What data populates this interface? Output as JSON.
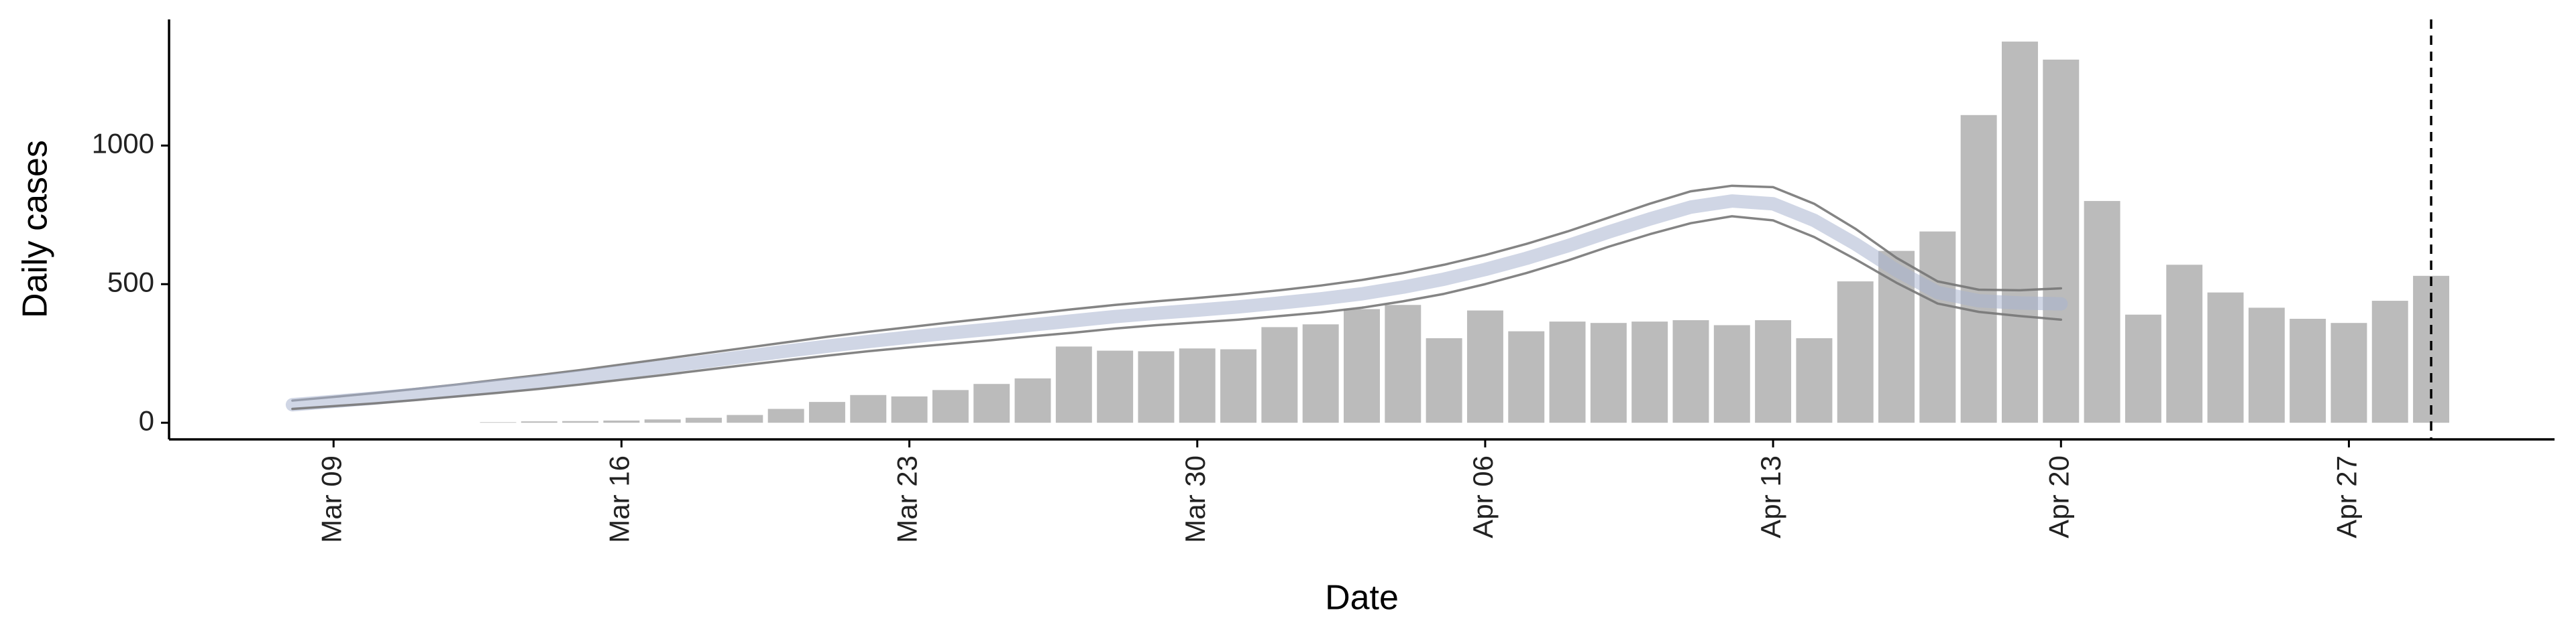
{
  "chart_data": {
    "type": "combo",
    "x_label": "Date",
    "y_label": "Daily cases",
    "xlim": [
      "Mar 05",
      "May 02"
    ],
    "xticks": [
      "Mar 09",
      "Mar 16",
      "Mar 23",
      "Mar 30",
      "Apr 06",
      "Apr 13",
      "Apr 20",
      "Apr 27"
    ],
    "ylim": [
      -60,
      1455
    ],
    "yticks": [
      0,
      500,
      1000
    ],
    "vline": "Apr 29",
    "bars": {
      "color": "#bbbbbb",
      "x": [
        "Mar 13",
        "Mar 14",
        "Mar 15",
        "Mar 16",
        "Mar 17",
        "Mar 18",
        "Mar 19",
        "Mar 20",
        "Mar 21",
        "Mar 22",
        "Mar 23",
        "Mar 24",
        "Mar 25",
        "Mar 26",
        "Mar 27",
        "Mar 28",
        "Mar 29",
        "Mar 30",
        "Mar 31",
        "Apr 01",
        "Apr 02",
        "Apr 03",
        "Apr 04",
        "Apr 05",
        "Apr 06",
        "Apr 07",
        "Apr 08",
        "Apr 09",
        "Apr 10",
        "Apr 11",
        "Apr 12",
        "Apr 13",
        "Apr 14",
        "Apr 15",
        "Apr 16",
        "Apr 17",
        "Apr 18",
        "Apr 19",
        "Apr 20",
        "Apr 21",
        "Apr 22",
        "Apr 23",
        "Apr 24",
        "Apr 25",
        "Apr 26",
        "Apr 27",
        "Apr 28",
        "Apr 29"
      ],
      "values": [
        2,
        5,
        6,
        8,
        12,
        18,
        28,
        50,
        75,
        100,
        95,
        118,
        140,
        160,
        275,
        260,
        258,
        268,
        265,
        345,
        355,
        410,
        425,
        305,
        405,
        330,
        365,
        360,
        365,
        370,
        352,
        370,
        305,
        510,
        620,
        690,
        1110,
        1375,
        1310,
        800,
        390,
        570,
        470,
        415,
        375,
        360,
        440,
        530
      ]
    },
    "line_x": [
      "Mar 08",
      "Mar 09",
      "Mar 10",
      "Mar 11",
      "Mar 12",
      "Mar 13",
      "Mar 14",
      "Mar 15",
      "Mar 16",
      "Mar 17",
      "Mar 18",
      "Mar 19",
      "Mar 20",
      "Mar 21",
      "Mar 22",
      "Mar 23",
      "Mar 24",
      "Mar 25",
      "Mar 26",
      "Mar 27",
      "Mar 28",
      "Mar 29",
      "Mar 30",
      "Mar 31",
      "Apr 01",
      "Apr 02",
      "Apr 03",
      "Apr 04",
      "Apr 05",
      "Apr 06",
      "Apr 07",
      "Apr 08",
      "Apr 09",
      "Apr 10",
      "Apr 11",
      "Apr 12",
      "Apr 13",
      "Apr 14",
      "Apr 15",
      "Apr 16",
      "Apr 17",
      "Apr 18",
      "Apr 19",
      "Apr 20"
    ],
    "series": [
      {
        "color": "#777777",
        "values": [
          80,
          93,
          107,
          122,
          138,
          155,
          172,
          190,
          210,
          230,
          250,
          270,
          290,
          310,
          328,
          345,
          362,
          378,
          394,
          410,
          425,
          438,
          450,
          463,
          478,
          495,
          515,
          540,
          570,
          605,
          645,
          690,
          740,
          790,
          835,
          855,
          850,
          790,
          700,
          595,
          510,
          480,
          478,
          485
        ]
      },
      {
        "color": "#aab4cf",
        "values": [
          65,
          77,
          89,
          102,
          117,
          132,
          147,
          164,
          183,
          201,
          220,
          239,
          258,
          276,
          293,
          309,
          324,
          338,
          353,
          368,
          383,
          395,
          406,
          418,
          432,
          447,
          465,
          489,
          518,
          553,
          593,
          638,
          688,
          735,
          778,
          800,
          790,
          730,
          645,
          550,
          470,
          440,
          432,
          429
        ]
      },
      {
        "color": "#777777",
        "values": [
          50,
          60,
          70,
          82,
          95,
          108,
          122,
          138,
          155,
          172,
          190,
          208,
          225,
          242,
          258,
          272,
          285,
          298,
          312,
          325,
          340,
          352,
          362,
          372,
          385,
          398,
          415,
          438,
          465,
          500,
          540,
          585,
          635,
          680,
          720,
          745,
          730,
          670,
          590,
          505,
          430,
          400,
          385,
          372
        ]
      }
    ]
  }
}
